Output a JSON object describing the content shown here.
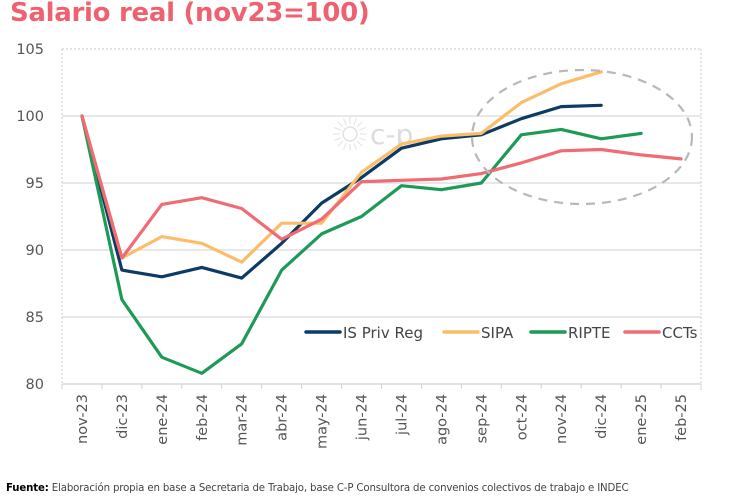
{
  "title": "Salario real (nov23=100)",
  "footer": {
    "label": "Fuente:",
    "text": " Elaboración propia en base a Secretaria de Trabajo, base C-P Consultora de convenios colectivos de trabajo e INDEC"
  },
  "watermark": "c-p",
  "chart_data": {
    "type": "line",
    "title": "Salario real (nov23=100)",
    "xlabel": "",
    "ylabel": "",
    "ylim": [
      80,
      105
    ],
    "yticks": [
      80,
      85,
      90,
      95,
      100,
      105
    ],
    "grid": true,
    "legend_position": "bottom-right",
    "categories": [
      "nov-23",
      "dic-23",
      "ene-24",
      "feb-24",
      "mar-24",
      "abr-24",
      "may-24",
      "jun-24",
      "jul-24",
      "ago-24",
      "sep-24",
      "oct-24",
      "nov-24",
      "dic-24",
      "ene-25",
      "feb-25"
    ],
    "series": [
      {
        "name": "IS Priv Reg",
        "color": "#0d3b63",
        "values": [
          100,
          88.5,
          88.0,
          88.7,
          87.9,
          90.5,
          93.5,
          95.4,
          97.6,
          98.3,
          98.6,
          99.8,
          100.7,
          100.8,
          null,
          null
        ]
      },
      {
        "name": "SIPA",
        "color": "#fbbd69",
        "values": [
          100,
          89.4,
          91.0,
          90.5,
          89.1,
          92.0,
          92.0,
          95.8,
          97.9,
          98.5,
          98.7,
          101.0,
          102.4,
          103.3,
          null,
          null
        ]
      },
      {
        "name": "RIPTE",
        "color": "#1e9a57",
        "values": [
          100,
          86.3,
          82.0,
          80.8,
          83.0,
          88.5,
          91.2,
          92.5,
          94.8,
          94.5,
          95.0,
          98.6,
          99.0,
          98.3,
          98.7,
          null
        ]
      },
      {
        "name": "CCTs",
        "color": "#f06b73",
        "values": [
          100,
          89.4,
          93.4,
          93.9,
          93.1,
          90.8,
          92.3,
          95.1,
          95.2,
          95.3,
          95.7,
          96.5,
          97.4,
          97.5,
          97.1,
          96.8
        ]
      }
    ],
    "annotations": [
      {
        "type": "dashed-ellipse",
        "description": "highlights oct-24 to feb-25 region",
        "color": "#b8b8b8"
      }
    ]
  }
}
